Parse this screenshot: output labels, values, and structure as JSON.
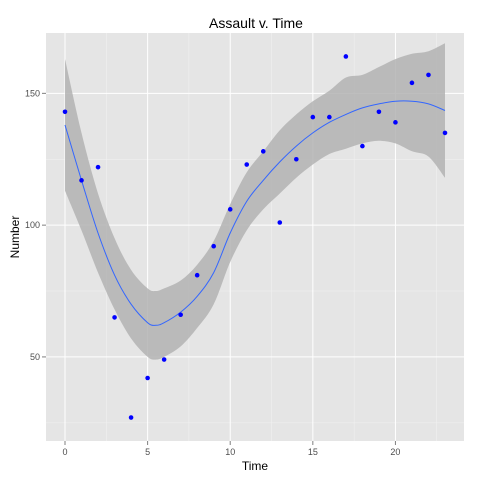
{
  "colors": {
    "panel_background": "#e5e5e5",
    "grid_major": "#ffffff",
    "grid_minor": "#f2f2f2",
    "point": "#0000ff",
    "smooth_line": "#3366ff",
    "confidence_band": "#b3b3b3",
    "tick": "#7f7f7f"
  },
  "chart_data": {
    "type": "scatter",
    "title": "Assault v. Time",
    "xlabel": "Time",
    "ylabel": "Number",
    "xlim": [
      -1.15,
      24.15
    ],
    "ylim": [
      18.1,
      172.9
    ],
    "x_ticks": [
      0,
      5,
      10,
      15,
      20
    ],
    "x_tick_labels": [
      "0",
      "5",
      "10",
      "15",
      "20"
    ],
    "y_ticks": [
      50,
      100,
      150
    ],
    "y_tick_labels": [
      "50",
      "100",
      "150"
    ],
    "grid": true,
    "legend": "none",
    "points": [
      {
        "x": 0,
        "y": 143
      },
      {
        "x": 1,
        "y": 117
      },
      {
        "x": 2,
        "y": 122
      },
      {
        "x": 3,
        "y": 65
      },
      {
        "x": 4,
        "y": 27
      },
      {
        "x": 5,
        "y": 42
      },
      {
        "x": 6,
        "y": 49
      },
      {
        "x": 7,
        "y": 66
      },
      {
        "x": 8,
        "y": 81
      },
      {
        "x": 9,
        "y": 92
      },
      {
        "x": 10,
        "y": 106
      },
      {
        "x": 11,
        "y": 123
      },
      {
        "x": 12,
        "y": 128
      },
      {
        "x": 13,
        "y": 101
      },
      {
        "x": 14,
        "y": 125
      },
      {
        "x": 15,
        "y": 141
      },
      {
        "x": 16,
        "y": 141
      },
      {
        "x": 17,
        "y": 164
      },
      {
        "x": 18,
        "y": 130
      },
      {
        "x": 19,
        "y": 143
      },
      {
        "x": 20,
        "y": 139
      },
      {
        "x": 21,
        "y": 154
      },
      {
        "x": 22,
        "y": 157
      },
      {
        "x": 23,
        "y": 135
      }
    ],
    "smooth": {
      "x": [
        0,
        1,
        2,
        3,
        4,
        5,
        5.5,
        6,
        7,
        8,
        9,
        10,
        11,
        12,
        13,
        14,
        15,
        16,
        17,
        18,
        19,
        20,
        21,
        22,
        23
      ],
      "y": [
        138,
        117,
        97,
        81,
        70,
        63,
        62,
        63,
        67,
        73,
        82,
        97,
        109,
        117,
        124,
        130,
        135,
        139,
        142,
        144.5,
        146,
        147,
        147,
        146,
        143.5
      ],
      "upper": [
        163,
        135,
        112,
        95,
        83,
        76,
        75,
        76,
        79,
        85,
        94,
        108,
        120,
        128,
        136,
        142,
        147,
        151,
        156,
        157,
        160,
        163,
        165,
        166,
        169
      ],
      "lower": [
        113,
        98,
        82,
        68,
        57,
        50,
        49,
        50,
        54,
        61,
        70,
        86,
        98,
        106,
        112,
        118,
        123,
        127,
        129,
        131,
        132,
        131,
        128,
        126,
        118
      ]
    }
  }
}
